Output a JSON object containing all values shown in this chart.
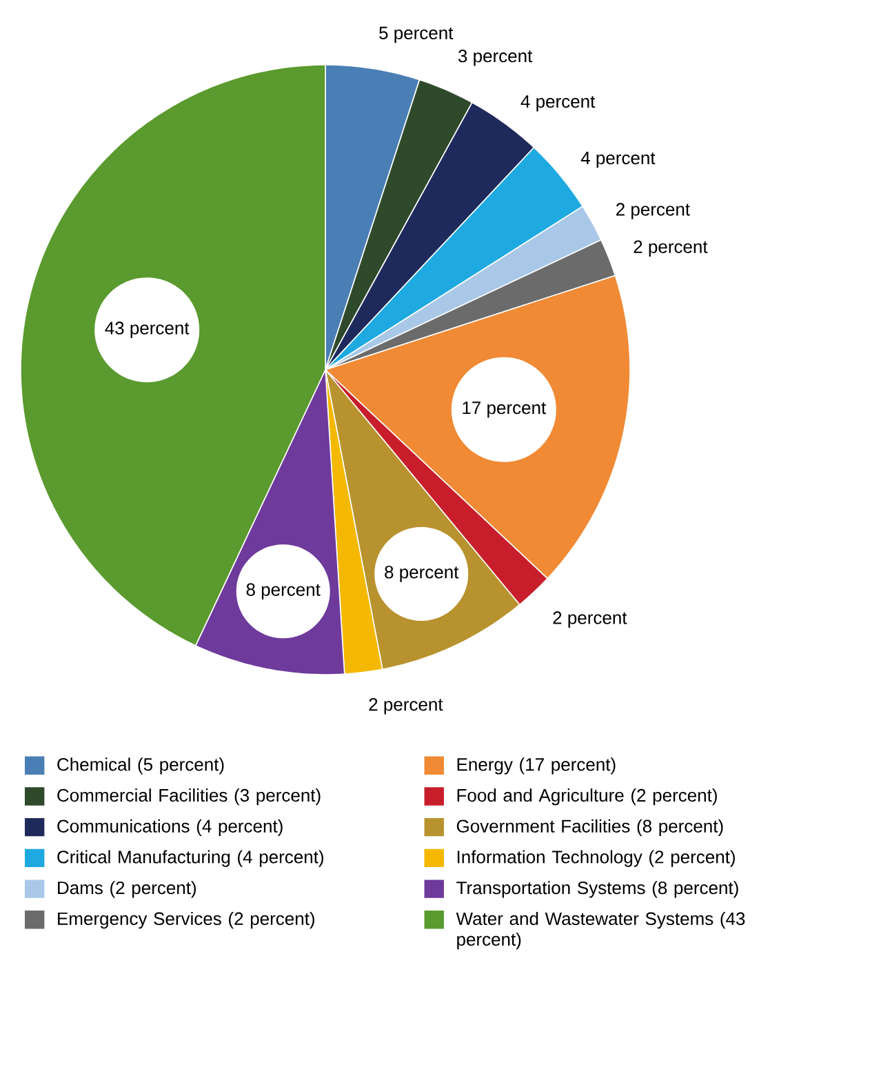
{
  "chart_data": {
    "type": "pie",
    "categories": [
      "Chemical (5 percent)",
      "Commercial Facilities (3 percent)",
      "Communications (4 percent)",
      "Critical Manufacturing (4 percent)",
      "Dams (2 percent)",
      "Emergency Services (2 percent)",
      "Energy (17 percent)",
      "Food and Agriculture (2 percent)",
      "Government Facilities (8 percent)",
      "Information Technology (2 percent)",
      "Transportation Systems (8 percent)",
      "Water and Wastewater Systems (43 percent)"
    ],
    "values": [
      5,
      3,
      4,
      4,
      2,
      2,
      17,
      2,
      8,
      2,
      8,
      43
    ],
    "value_labels": [
      "5 percent",
      "3 percent",
      "4 percent",
      "4 percent",
      "2 percent",
      "2 percent",
      "17 percent",
      "2 percent",
      "8 percent",
      "2 percent",
      "8 percent",
      "43 percent"
    ],
    "colors": [
      "#4a7fb5",
      "#2e4a2b",
      "#1f2a5c",
      "#1ea9e1",
      "#a9c8e8",
      "#6b6b6b",
      "#f08a35",
      "#c81e2b",
      "#b8922e",
      "#f5b800",
      "#6e3a9c",
      "#5a9a2e"
    ],
    "legend": "bottom"
  }
}
